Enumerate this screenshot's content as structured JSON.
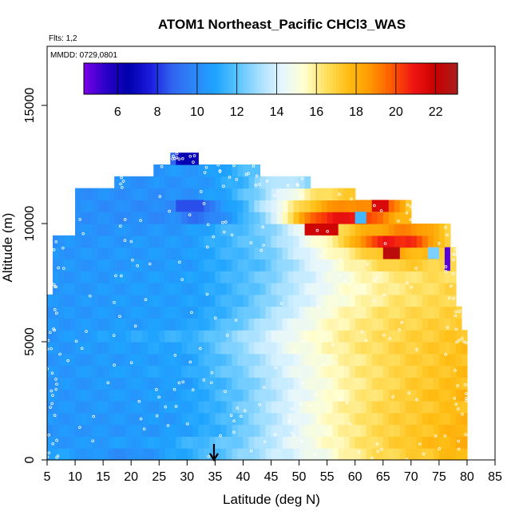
{
  "chart_data": {
    "type": "heatmap",
    "title": "ATOM1 Northeast_Pacific CHCl3_WAS",
    "annotations": {
      "flights": "Flts: 1,2",
      "dates": "MMDD: 0729,0801"
    },
    "xlabel": "Latitude (deg N)",
    "ylabel": "Altitude (m)",
    "xlim": [
      5,
      85
    ],
    "ylim": [
      0,
      17500
    ],
    "x_ticks": [
      "5",
      "10",
      "15",
      "20",
      "25",
      "30",
      "35",
      "40",
      "45",
      "50",
      "55",
      "60",
      "65",
      "70",
      "75",
      "80",
      "85"
    ],
    "x_tick_values": [
      5,
      10,
      15,
      20,
      25,
      30,
      35,
      40,
      45,
      50,
      55,
      60,
      65,
      70,
      75,
      80,
      85
    ],
    "y_ticks": [
      "0",
      "5000",
      "10000",
      "15000"
    ],
    "y_tick_values": [
      0,
      5000,
      10000,
      15000
    ],
    "colorbar": {
      "range": [
        4.3,
        23.1
      ],
      "tick_labels": [
        "6",
        "8",
        "10",
        "12",
        "14",
        "16",
        "18",
        "20",
        "22"
      ],
      "tick_values": [
        6,
        8,
        10,
        12,
        14,
        16,
        18,
        20,
        22
      ],
      "colors": [
        "#7b00e8",
        "#2a00c8",
        "#0000aa",
        "#1a1adc",
        "#2f64f0",
        "#2d86f8",
        "#1ea4ff",
        "#5cc4ff",
        "#a6e0ff",
        "#e4f6ff",
        "#ffffd2",
        "#ffe060",
        "#ffbe14",
        "#ff9a00",
        "#ff5a00",
        "#f01414",
        "#c80000",
        "#a81e1e"
      ]
    },
    "marker": {
      "type": "arrow",
      "x": 34.8,
      "label": ""
    },
    "rows": [
      {
        "y0": 0,
        "y1": 500,
        "x0": 5,
        "x1": 80,
        "stops": [
          [
            5,
            11
          ],
          [
            20,
            10
          ],
          [
            35,
            11.8
          ],
          [
            45,
            13.6
          ],
          [
            55,
            15
          ],
          [
            62,
            16.4
          ],
          [
            72,
            17.2
          ],
          [
            79,
            17.8
          ]
        ]
      },
      {
        "y0": 500,
        "y1": 1000,
        "x0": 5,
        "x1": 80,
        "stops": [
          [
            5,
            10.4
          ],
          [
            25,
            10.8
          ],
          [
            40,
            12.5
          ],
          [
            50,
            14.6
          ],
          [
            60,
            16.2
          ],
          [
            70,
            17.4
          ],
          [
            79,
            18
          ]
        ]
      },
      {
        "y0": 1000,
        "y1": 1500,
        "x0": 5,
        "x1": 80,
        "stops": [
          [
            5,
            10.4
          ],
          [
            25,
            10.5
          ],
          [
            35,
            11.2
          ],
          [
            45,
            13.4
          ],
          [
            55,
            15.4
          ],
          [
            65,
            16.8
          ],
          [
            74,
            17.5
          ],
          [
            79,
            18
          ]
        ]
      },
      {
        "y0": 1500,
        "y1": 2000,
        "x0": 5,
        "x1": 80,
        "stops": [
          [
            5,
            10.4
          ],
          [
            28,
            10.6
          ],
          [
            38,
            11.8
          ],
          [
            48,
            14
          ],
          [
            57,
            15.8
          ],
          [
            67,
            17
          ],
          [
            79,
            17.8
          ]
        ]
      },
      {
        "y0": 2000,
        "y1": 2500,
        "x0": 5,
        "x1": 80,
        "stops": [
          [
            5,
            10.4
          ],
          [
            25,
            10.6
          ],
          [
            35,
            11.3
          ],
          [
            45,
            13.5
          ],
          [
            55,
            15.5
          ],
          [
            65,
            16.8
          ],
          [
            79,
            17.6
          ]
        ]
      },
      {
        "y0": 2500,
        "y1": 3000,
        "x0": 5,
        "x1": 80,
        "stops": [
          [
            5,
            10.4
          ],
          [
            30,
            10.8
          ],
          [
            40,
            12.2
          ],
          [
            50,
            14.4
          ],
          [
            60,
            16
          ],
          [
            70,
            17.2
          ],
          [
            79,
            17.8
          ]
        ]
      },
      {
        "y0": 3000,
        "y1": 3500,
        "x0": 5,
        "x1": 80,
        "stops": [
          [
            5,
            10.4
          ],
          [
            30,
            10.7
          ],
          [
            40,
            12.2
          ],
          [
            50,
            14.4
          ],
          [
            60,
            16
          ],
          [
            70,
            17.1
          ],
          [
            79,
            17.6
          ]
        ]
      },
      {
        "y0": 3500,
        "y1": 4000,
        "x0": 5,
        "x1": 80,
        "stops": [
          [
            5,
            10.4
          ],
          [
            30,
            11
          ],
          [
            40,
            12.6
          ],
          [
            50,
            14.6
          ],
          [
            60,
            16.1
          ],
          [
            70,
            17
          ],
          [
            79,
            17.6
          ]
        ]
      },
      {
        "y0": 4000,
        "y1": 4500,
        "x0": 5,
        "x1": 80,
        "stops": [
          [
            5,
            10.4
          ],
          [
            30,
            10.8
          ],
          [
            38,
            12.2
          ],
          [
            48,
            14.2
          ],
          [
            58,
            15.8
          ],
          [
            68,
            16.9
          ],
          [
            79,
            17.5
          ]
        ]
      },
      {
        "y0": 4500,
        "y1": 5000,
        "x0": 5,
        "x1": 80,
        "stops": [
          [
            5,
            10.4
          ],
          [
            30,
            11
          ],
          [
            38,
            12.6
          ],
          [
            48,
            14.6
          ],
          [
            58,
            16
          ],
          [
            68,
            16.9
          ],
          [
            79,
            17.5
          ]
        ]
      },
      {
        "y0": 5000,
        "y1": 5500,
        "x0": 5,
        "x1": 80,
        "stops": [
          [
            5,
            10.4
          ],
          [
            32,
            11.5
          ],
          [
            40,
            13
          ],
          [
            48,
            14.6
          ],
          [
            58,
            16
          ],
          [
            68,
            16.8
          ],
          [
            79,
            17.4
          ]
        ]
      },
      {
        "y0": 5500,
        "y1": 6000,
        "x0": 5,
        "x1": 79,
        "stops": [
          [
            5,
            10.4
          ],
          [
            30,
            10.8
          ],
          [
            38,
            12
          ],
          [
            46,
            13.8
          ],
          [
            56,
            15.6
          ],
          [
            66,
            16.6
          ],
          [
            78,
            17.2
          ]
        ]
      },
      {
        "y0": 6000,
        "y1": 6500,
        "x0": 5,
        "x1": 79,
        "stops": [
          [
            5,
            10.4
          ],
          [
            32,
            10.8
          ],
          [
            40,
            12
          ],
          [
            48,
            13.8
          ],
          [
            56,
            15.4
          ],
          [
            66,
            16.5
          ],
          [
            78,
            17
          ]
        ]
      },
      {
        "y0": 6500,
        "y1": 7000,
        "x0": 5,
        "x1": 78,
        "stops": [
          [
            5,
            10.4
          ],
          [
            32,
            10.8
          ],
          [
            40,
            11.8
          ],
          [
            48,
            13.4
          ],
          [
            56,
            15
          ],
          [
            66,
            16.2
          ],
          [
            77,
            16.8
          ]
        ]
      },
      {
        "y0": 7000,
        "y1": 7500,
        "x0": 6,
        "x1": 78,
        "stops": [
          [
            6,
            10.4
          ],
          [
            32,
            10.8
          ],
          [
            42,
            12
          ],
          [
            50,
            13.8
          ],
          [
            58,
            15.2
          ],
          [
            68,
            16.2
          ],
          [
            77,
            16.8
          ]
        ]
      },
      {
        "y0": 7500,
        "y1": 8000,
        "x0": 6,
        "x1": 78,
        "stops": [
          [
            6,
            10.4
          ],
          [
            32,
            10.8
          ],
          [
            44,
            12.4
          ],
          [
            52,
            14
          ],
          [
            60,
            15.4
          ],
          [
            70,
            16.4
          ],
          [
            77,
            16.6
          ]
        ]
      },
      {
        "y0": 8000,
        "y1": 8500,
        "x0": 6,
        "x1": 78,
        "stops": [
          [
            6,
            10.4
          ],
          [
            30,
            10.6
          ],
          [
            44,
            12
          ],
          [
            52,
            14
          ],
          [
            60,
            15.8
          ],
          [
            68,
            17.2
          ],
          [
            76,
            16.8
          ],
          [
            78,
            16.5
          ]
        ]
      },
      {
        "y0": 8500,
        "y1": 9000,
        "x0": 6,
        "x1": 78,
        "stops": [
          [
            6,
            10.4
          ],
          [
            30,
            10.6
          ],
          [
            44,
            12.2
          ],
          [
            52,
            14.4
          ],
          [
            60,
            16.4
          ],
          [
            67,
            18.2
          ],
          [
            73,
            17.6
          ],
          [
            78,
            16.6
          ]
        ]
      },
      {
        "y0": 9000,
        "y1": 9500,
        "x0": 6,
        "x1": 77,
        "stops": [
          [
            6,
            10.3
          ],
          [
            30,
            10.6
          ],
          [
            44,
            12.4
          ],
          [
            52,
            14.8
          ],
          [
            58,
            16.8
          ],
          [
            62,
            19.5
          ],
          [
            66,
            21
          ],
          [
            70,
            20.5
          ],
          [
            74,
            18.6
          ],
          [
            77,
            16.4
          ]
        ]
      },
      {
        "y0": 9500,
        "y1": 10000,
        "x0": 10,
        "x1": 77,
        "stops": [
          [
            10,
            10.2
          ],
          [
            30,
            10.5
          ],
          [
            44,
            12.4
          ],
          [
            52,
            15
          ],
          [
            58,
            17
          ],
          [
            64,
            18.4
          ],
          [
            70,
            19.2
          ],
          [
            77,
            17
          ]
        ]
      },
      {
        "y0": 10000,
        "y1": 10500,
        "x0": 10,
        "x1": 70,
        "stops": [
          [
            10,
            10.2
          ],
          [
            28,
            10
          ],
          [
            32,
            9
          ],
          [
            40,
            11.2
          ],
          [
            46,
            14
          ],
          [
            50,
            18.2
          ],
          [
            56,
            21.2
          ],
          [
            62,
            20.4
          ],
          [
            66,
            18.6
          ],
          [
            70,
            17.6
          ]
        ]
      },
      {
        "y0": 10500,
        "y1": 11000,
        "x0": 10,
        "x1": 70,
        "stops": [
          [
            10,
            10.2
          ],
          [
            28,
            10
          ],
          [
            32,
            8.8
          ],
          [
            40,
            11.5
          ],
          [
            46,
            14.6
          ],
          [
            52,
            17.5
          ],
          [
            58,
            19.2
          ],
          [
            62,
            18.6
          ],
          [
            66,
            19.8
          ],
          [
            70,
            17
          ]
        ]
      },
      {
        "y0": 11000,
        "y1": 11500,
        "x0": 10,
        "x1": 60,
        "stops": [
          [
            10,
            10.2
          ],
          [
            30,
            10.2
          ],
          [
            36,
            10.8
          ],
          [
            42,
            12.4
          ],
          [
            48,
            14.6
          ],
          [
            54,
            16.6
          ],
          [
            60,
            17.2
          ]
        ]
      },
      {
        "y0": 11500,
        "y1": 12000,
        "x0": 17,
        "x1": 52,
        "stops": [
          [
            17,
            10.2
          ],
          [
            32,
            10.4
          ],
          [
            40,
            11.5
          ],
          [
            46,
            13.8
          ],
          [
            52,
            12.8
          ]
        ]
      },
      {
        "y0": 12000,
        "y1": 12500,
        "x0": 24,
        "x1": 43,
        "stops": [
          [
            24,
            10.4
          ],
          [
            34,
            10.6
          ],
          [
            40,
            11.6
          ],
          [
            43,
            12.2
          ]
        ]
      },
      {
        "y0": 12500,
        "y1": 13000,
        "x0": 27,
        "x1": 32,
        "stops": [
          [
            27,
            10
          ],
          [
            29,
            6.2
          ],
          [
            32,
            6.8
          ]
        ]
      }
    ],
    "patches": [
      {
        "x0": 28,
        "x1": 33,
        "y0": 10500,
        "y1": 11000,
        "value": 8.4
      },
      {
        "x0": 51,
        "x1": 57,
        "y0": 9500,
        "y1": 10000,
        "value": 21.8
      },
      {
        "x0": 63,
        "x1": 66,
        "y0": 10500,
        "y1": 11000,
        "value": 21.5
      },
      {
        "x0": 65,
        "x1": 68,
        "y0": 8500,
        "y1": 9000,
        "value": 22.4
      },
      {
        "x0": 76,
        "x1": 77,
        "y0": 8000,
        "y1": 9000,
        "value": 4.8
      },
      {
        "x0": 73,
        "x1": 75,
        "y0": 8500,
        "y1": 9000,
        "value": 12.5
      },
      {
        "x0": 60,
        "x1": 62,
        "y0": 10000,
        "y1": 10500,
        "value": 11.6
      }
    ]
  }
}
